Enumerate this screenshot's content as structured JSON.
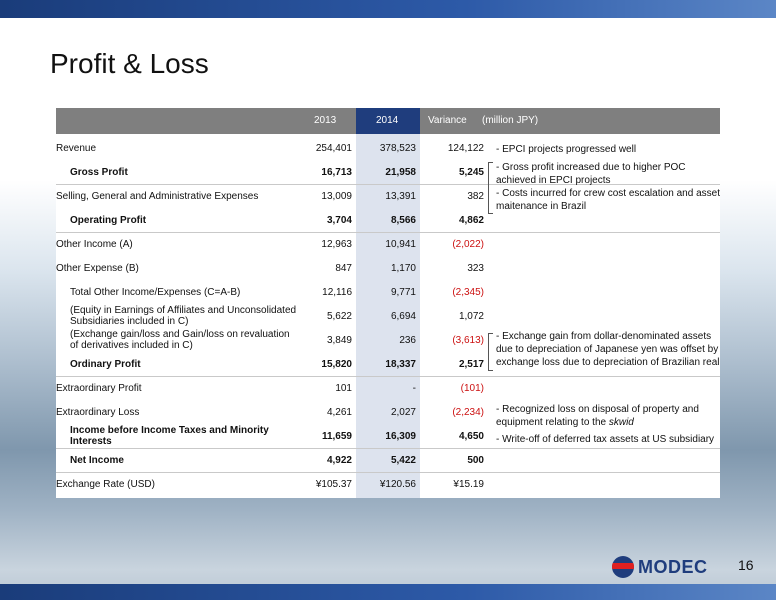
{
  "slide": {
    "title": "Profit & Loss",
    "page_number": "16",
    "logo_text": "MODEC"
  },
  "table": {
    "headers": {
      "y2013": "2013",
      "y2014": "2014",
      "variance": "Variance",
      "unit": "(million JPY)"
    },
    "rows": [
      {
        "label": "Revenue",
        "v2013": "254,401",
        "v2014": "378,523",
        "variance": "124,122"
      },
      {
        "label": "Gross Profit",
        "v2013": "16,713",
        "v2014": "21,958",
        "variance": "5,245"
      },
      {
        "label": "Selling, General and Administrative Expenses",
        "v2013": "13,009",
        "v2014": "13,391",
        "variance": "382"
      },
      {
        "label": "Operating Profit",
        "v2013": "3,704",
        "v2014": "8,566",
        "variance": "4,862"
      },
      {
        "label": "Other Income (A)",
        "v2013": "12,963",
        "v2014": "10,941",
        "variance": "(2,022)"
      },
      {
        "label": "Other Expense (B)",
        "v2013": "847",
        "v2014": "1,170",
        "variance": "323"
      },
      {
        "label": "Total Other Income/Expenses (C=A-B)",
        "v2013": "12,116",
        "v2014": "9,771",
        "variance": "(2,345)"
      },
      {
        "label": "(Equity in Earnings of Affiliates and Unconsolidated Subsidiaries included in C)",
        "v2013": "5,622",
        "v2014": "6,694",
        "variance": "1,072"
      },
      {
        "label": "(Exchange gain/loss and Gain/loss on revaluation of derivatives included in C)",
        "v2013": "3,849",
        "v2014": "236",
        "variance": "(3,613)"
      },
      {
        "label": "Ordinary Profit",
        "v2013": "15,820",
        "v2014": "18,337",
        "variance": "2,517"
      },
      {
        "label": "Extraordinary Profit",
        "v2013": "101",
        "v2014": "-",
        "variance": "(101)"
      },
      {
        "label": "Extraordinary Loss",
        "v2013": "4,261",
        "v2014": "2,027",
        "variance": "(2,234)"
      },
      {
        "label": "Income before Income Taxes and Minority Interests",
        "v2013": "11,659",
        "v2014": "16,309",
        "variance": "4,650"
      },
      {
        "label": "Net Income",
        "v2013": "4,922",
        "v2014": "5,422",
        "variance": "500"
      },
      {
        "label": "Exchange Rate (USD)",
        "v2013": "¥105.37",
        "v2014": "¥120.56",
        "variance": "¥15.19"
      }
    ]
  },
  "notes": {
    "revenue": "- EPCI projects progressed well",
    "gross_profit": "- Gross profit increased due to higher POC achieved in EPCI projects",
    "sga": "- Costs incurred for crew cost escalation and asset maitenance in Brazil",
    "exchange": "- Exchange gain from dollar-denominated assets due to depreciation of Japanese yen was offset by exchange loss due to depreciation of Brazilian real",
    "extraordinary_loss_prefix": "- Recognized loss on disposal of property and equipment relating to the ",
    "extraordinary_loss_italic": "skwid",
    "writeoff": "- Write-off of deferred tax assets at US subsidiary"
  }
}
